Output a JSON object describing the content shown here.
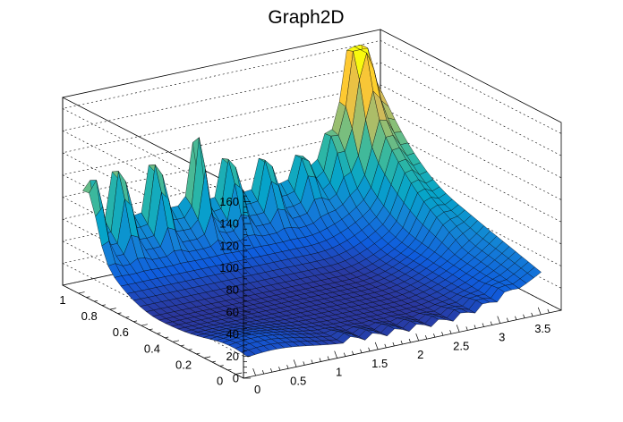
{
  "chart_data": {
    "type": "surface",
    "title": "Graph2D",
    "x_ticks": [
      "0",
      "0.5",
      "1",
      "1.5",
      "2",
      "2.5",
      "3",
      "3.5"
    ],
    "x_tick_values": [
      0,
      0.5,
      1,
      1.5,
      2,
      2.5,
      3,
      3.5
    ],
    "y_ticks": [
      "0",
      "0.2",
      "0.4",
      "0.6",
      "0.8",
      "1"
    ],
    "y_tick_values": [
      0,
      0.2,
      0.4,
      0.6,
      0.8,
      1
    ],
    "z_ticks": [
      "0",
      "20",
      "40",
      "60",
      "80",
      "100",
      "120",
      "140",
      "160"
    ],
    "z_tick_values": [
      0,
      20,
      40,
      60,
      80,
      100,
      120,
      140,
      160
    ],
    "xlim": [
      -0.15,
      3.75
    ],
    "ylim": [
      -0.05,
      1.1
    ],
    "zlim": [
      0,
      170
    ],
    "grid": true,
    "colormap": [
      "#352a87",
      "#0f5cdd",
      "#1481d6",
      "#06a4ca",
      "#2eb7a4",
      "#87bf77",
      "#d1bb59",
      "#fec832",
      "#f9fb0e"
    ],
    "peaks_back_row": [
      {
        "x": 0.05,
        "z": 124
      },
      {
        "x": 0.4,
        "z": 130
      },
      {
        "x": 0.85,
        "z": 128
      },
      {
        "x": 1.35,
        "z": 118
      },
      {
        "x": 1.75,
        "z": 114
      },
      {
        "x": 2.2,
        "z": 102
      },
      {
        "x": 2.65,
        "z": 92
      },
      {
        "x": 3.0,
        "z": 98
      },
      {
        "x": 3.3,
        "z": 150
      }
    ],
    "surface_levels": {
      "back_edge": 60,
      "right_edge": 60,
      "floor": 5
    }
  }
}
